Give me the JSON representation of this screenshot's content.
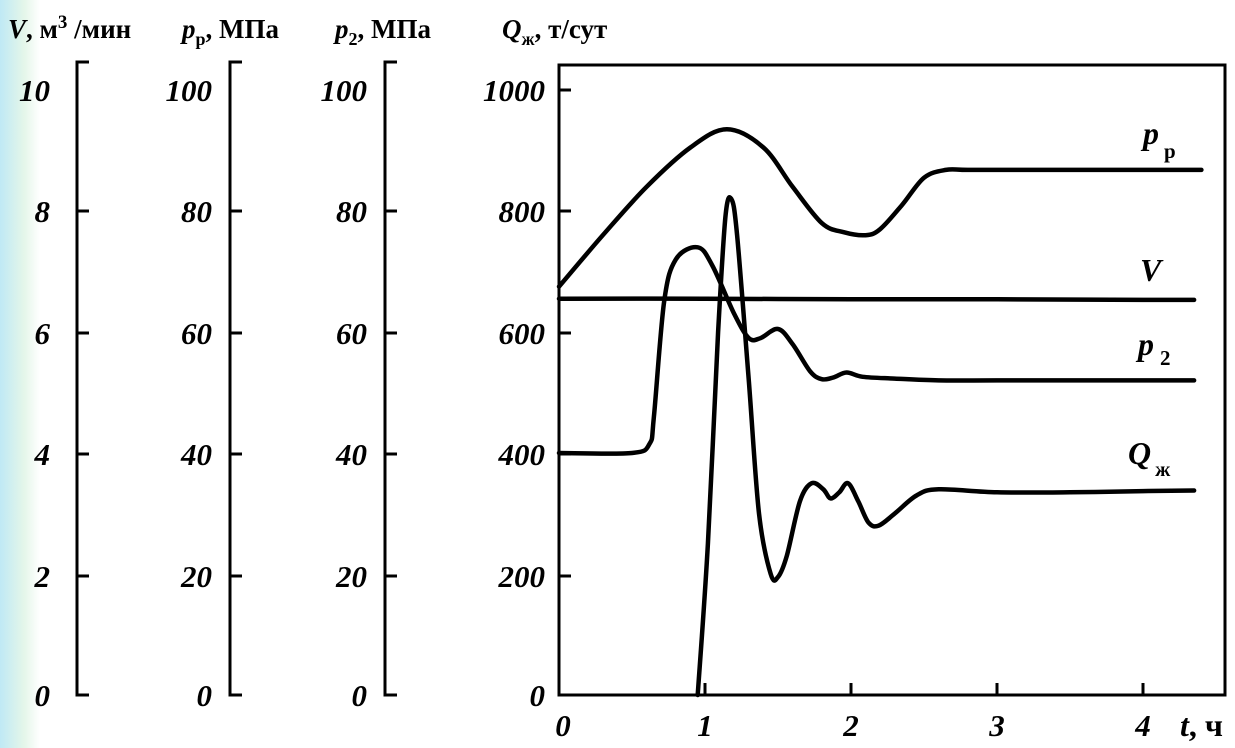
{
  "header": {
    "v": {
      "sym": "V",
      "unit": ", м",
      "sup": "3",
      "unit2": " /мин"
    },
    "pr": {
      "sym": "p",
      "sub": "р",
      "unit": ", МПа"
    },
    "p2": {
      "sym": "p",
      "sub": "2",
      "unit": ", МПа"
    },
    "q": {
      "sym": "Q",
      "sub": "ж",
      "unit": ", т/сут"
    }
  },
  "axis_ticks": {
    "v": [
      "10",
      "8",
      "6",
      "4",
      "2",
      "0"
    ],
    "pr": [
      "100",
      "80",
      "60",
      "40",
      "20",
      "0"
    ],
    "p2": [
      "100",
      "80",
      "60",
      "40",
      "20",
      "0"
    ],
    "q": [
      "1000",
      "800",
      "600",
      "400",
      "200",
      "0"
    ]
  },
  "x_axis": {
    "ticks": [
      "0",
      "1",
      "2",
      "3",
      "4"
    ],
    "label_sym": "t",
    "label_unit": ", ч"
  },
  "colors": {
    "line": "#000000",
    "left_glow": "#bfe9f5"
  },
  "chart_data": {
    "type": "line",
    "x_range": [
      0,
      4.5
    ],
    "axes": [
      {
        "id": "v",
        "range": [
          0,
          10
        ]
      },
      {
        "id": "pr",
        "range": [
          0,
          100
        ]
      },
      {
        "id": "p2",
        "range": [
          0,
          100
        ]
      },
      {
        "id": "q",
        "range": [
          0,
          1000
        ]
      }
    ],
    "series": [
      {
        "id": "pr",
        "name": "p р",
        "axis": "pr",
        "x": [
          0,
          0.3,
          0.6,
          0.9,
          1.15,
          1.4,
          1.6,
          1.8,
          1.95,
          2.1,
          2.2,
          2.35,
          2.5,
          2.65,
          2.8,
          3.2,
          3.8,
          4.4
        ],
        "y": [
          67.5,
          76,
          84,
          90.5,
          93.5,
          90.5,
          84,
          78,
          76.5,
          76,
          77,
          81,
          85.5,
          86.8,
          86.8,
          86.8,
          86.8,
          86.8
        ]
      },
      {
        "id": "v",
        "name": "V",
        "axis": "v",
        "x": [
          0,
          1,
          2,
          3,
          4,
          4.35
        ],
        "y": [
          6.55,
          6.55,
          6.54,
          6.54,
          6.53,
          6.53
        ]
      },
      {
        "id": "p2",
        "name": "p 2",
        "axis": "p2",
        "x": [
          0,
          0.5,
          0.62,
          0.65,
          0.72,
          0.8,
          0.95,
          1.05,
          1.2,
          1.3,
          1.38,
          1.5,
          1.6,
          1.72,
          1.8,
          1.88,
          1.97,
          2.08,
          2.3,
          2.6,
          3,
          3.6,
          4.35
        ],
        "y": [
          40,
          40,
          41.5,
          46,
          65,
          72,
          74,
          71,
          63,
          59,
          59,
          60.5,
          58,
          53.5,
          52.2,
          52.5,
          53.3,
          52.6,
          52.3,
          52,
          52,
          52,
          52
        ]
      },
      {
        "id": "q",
        "name": "Q ж",
        "axis": "q",
        "x": [
          0.95,
          1.02,
          1.09,
          1.14,
          1.18,
          1.22,
          1.3,
          1.37,
          1.45,
          1.5,
          1.56,
          1.65,
          1.73,
          1.81,
          1.86,
          1.92,
          1.98,
          2.05,
          2.12,
          2.19,
          2.3,
          2.45,
          2.6,
          3,
          3.5,
          4,
          4.35
        ],
        "y": [
          0,
          250,
          600,
          790,
          820,
          760,
          520,
          300,
          200,
          195,
          230,
          320,
          350,
          340,
          325,
          335,
          350,
          320,
          285,
          280,
          300,
          330,
          340,
          335,
          335,
          337,
          338
        ]
      }
    ],
    "line_labels": [
      {
        "series": "pr",
        "sym": "p",
        "sub": "р"
      },
      {
        "series": "v",
        "sym": "V"
      },
      {
        "series": "p2",
        "sym": "p",
        "sub": "2"
      },
      {
        "series": "q",
        "sym": "Q",
        "sub": "ж"
      }
    ]
  }
}
